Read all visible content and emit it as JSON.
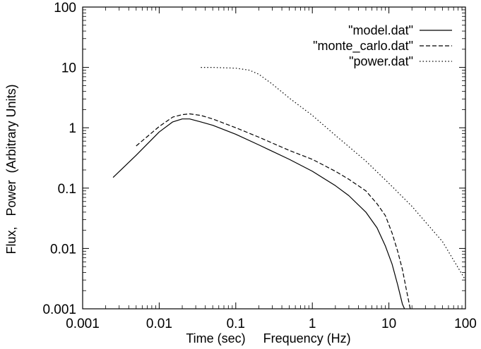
{
  "chart_data": {
    "type": "line",
    "title": "",
    "xlabel": "Time (sec)     Frequency (Hz)",
    "ylabel": "Flux,   Power  (Arbitrary Units)",
    "xscale": "log",
    "yscale": "log",
    "xlim": [
      0.001,
      100
    ],
    "ylim": [
      0.001,
      100
    ],
    "grid": false,
    "legend_position": "top-right",
    "x_ticks": [
      "0.001",
      "0.01",
      "0.1",
      "1",
      "10",
      "100"
    ],
    "y_ticks": [
      "0.001",
      "0.01",
      "0.1",
      "1",
      "10",
      "100"
    ],
    "series": [
      {
        "name": "\"model.dat\"",
        "style": "solid",
        "x": [
          0.0025,
          0.005,
          0.01,
          0.015,
          0.02,
          0.025,
          0.035,
          0.05,
          0.1,
          0.2,
          0.5,
          1,
          2,
          3,
          5,
          7,
          9,
          11,
          13,
          15,
          16
        ],
        "y": [
          0.15,
          0.35,
          0.85,
          1.25,
          1.4,
          1.4,
          1.25,
          1.1,
          0.78,
          0.52,
          0.3,
          0.19,
          0.11,
          0.075,
          0.04,
          0.022,
          0.011,
          0.0055,
          0.0025,
          0.0012,
          0.001
        ]
      },
      {
        "name": "\"monte_carlo.dat\"",
        "style": "dashed",
        "x": [
          0.005,
          0.01,
          0.015,
          0.02,
          0.025,
          0.035,
          0.05,
          0.1,
          0.2,
          0.5,
          1,
          2,
          3,
          5,
          7,
          9,
          11,
          13,
          15,
          17,
          19
        ],
        "y": [
          0.5,
          1.05,
          1.5,
          1.65,
          1.7,
          1.6,
          1.4,
          1.0,
          0.7,
          0.42,
          0.3,
          0.19,
          0.14,
          0.09,
          0.055,
          0.035,
          0.018,
          0.009,
          0.0045,
          0.002,
          0.001
        ]
      },
      {
        "name": "\"power.dat\"",
        "style": "dotted",
        "x": [
          0.035,
          0.05,
          0.1,
          0.15,
          0.2,
          0.3,
          0.5,
          1,
          2,
          5,
          10,
          20,
          50,
          100
        ],
        "y": [
          10,
          10,
          9.7,
          9,
          7.7,
          5.3,
          3.1,
          1.6,
          0.75,
          0.28,
          0.12,
          0.05,
          0.013,
          0.003
        ]
      }
    ]
  }
}
